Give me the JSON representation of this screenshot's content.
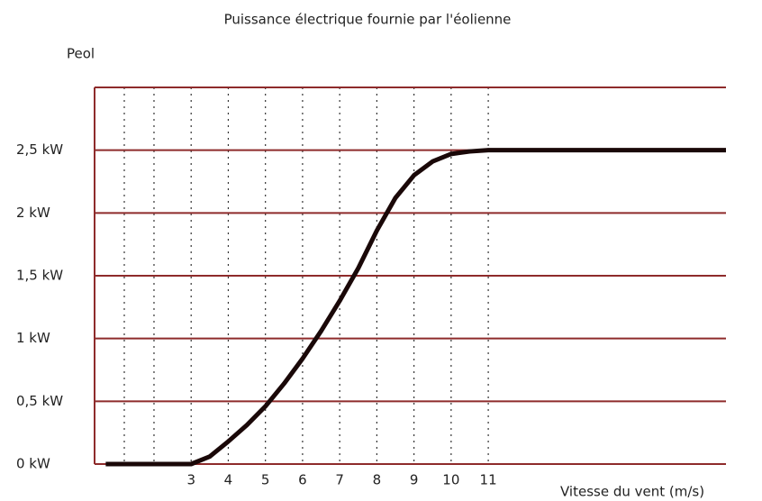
{
  "chart_data": {
    "type": "line",
    "title": "Puissance électrique fournie par l'éolienne",
    "y_label": "Peol",
    "x_label": "Vitesse du vent (m/s)",
    "xlim": [
      0.4,
      17.4
    ],
    "ylim": [
      0,
      3
    ],
    "xticks": [
      3,
      4,
      5,
      6,
      7,
      8,
      9,
      10,
      11
    ],
    "minor_xticks": [
      1.2,
      2
    ],
    "yticks": [
      {
        "value": 0,
        "label": "0 kW"
      },
      {
        "value": 0.5,
        "label": "0,5 kW"
      },
      {
        "value": 1,
        "label": "1 kW"
      },
      {
        "value": 1.5,
        "label": "1,5 kW"
      },
      {
        "value": 2,
        "label": "2 kW"
      },
      {
        "value": 2.5,
        "label": "2,5 kW"
      }
    ],
    "grid": true,
    "grid_color": "#8e2b2b",
    "series": [
      {
        "name": "Peol",
        "color": "#1a0808",
        "x": [
          0.7,
          3,
          3.5,
          4,
          4.5,
          5,
          5.5,
          6,
          6.5,
          7,
          7.5,
          8,
          8.5,
          9,
          9.5,
          10,
          10.5,
          11,
          17.4
        ],
        "values": [
          0,
          0,
          0.06,
          0.18,
          0.31,
          0.46,
          0.64,
          0.84,
          1.06,
          1.3,
          1.56,
          1.86,
          2.12,
          2.3,
          2.41,
          2.47,
          2.49,
          2.5,
          2.5
        ]
      }
    ]
  }
}
